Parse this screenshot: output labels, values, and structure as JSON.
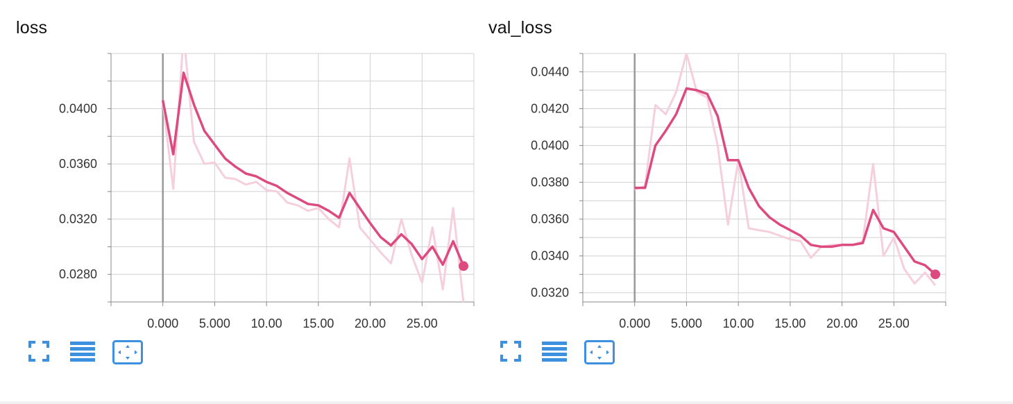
{
  "colors": {
    "line": "#dc4a7f",
    "raw_line": "#f6cfdc",
    "grid": "#d0d0d0",
    "zero_axis": "#999999",
    "icon": "#3d8fe0"
  },
  "toolbar": {
    "icons": [
      "fullscreen-icon",
      "data-table-icon",
      "fit-domain-icon"
    ]
  },
  "chart_data": [
    {
      "type": "line",
      "title": "loss",
      "xlim": [
        -5,
        30
      ],
      "ylim": [
        0.026,
        0.044
      ],
      "x_ticks": [
        0,
        5,
        10,
        15,
        20,
        25
      ],
      "x_tick_labels": [
        "0.000",
        "5.000",
        "10.00",
        "15.00",
        "20.00",
        "25.00"
      ],
      "y_ticks": [
        0.028,
        0.032,
        0.036,
        0.04
      ],
      "y_tick_labels": [
        "0.0280",
        "0.0320",
        "0.0360",
        "0.0400"
      ],
      "grid": true,
      "series": [
        {
          "role": "raw",
          "x": [
            0,
            1,
            2,
            3,
            4,
            5,
            6,
            7,
            8,
            9,
            10,
            11,
            12,
            13,
            14,
            15,
            16,
            17,
            18,
            19,
            20,
            21,
            22,
            23,
            24,
            25,
            26,
            27,
            28,
            29
          ],
          "y": [
            0.0405,
            0.0342,
            0.0454,
            0.0376,
            0.036,
            0.0361,
            0.035,
            0.0349,
            0.0345,
            0.0347,
            0.0341,
            0.034,
            0.0332,
            0.033,
            0.0326,
            0.0328,
            0.032,
            0.0314,
            0.0364,
            0.0314,
            0.0305,
            0.0296,
            0.0288,
            0.032,
            0.0294,
            0.0274,
            0.0314,
            0.0269,
            0.0328,
            0.0259
          ]
        },
        {
          "role": "smoothed",
          "x": [
            0,
            1,
            2,
            3,
            4,
            5,
            6,
            7,
            8,
            9,
            10,
            11,
            12,
            13,
            14,
            15,
            16,
            17,
            18,
            19,
            20,
            21,
            22,
            23,
            24,
            25,
            26,
            27,
            28,
            29
          ],
          "y": [
            0.0406,
            0.0367,
            0.0426,
            0.0403,
            0.0384,
            0.0374,
            0.0364,
            0.0358,
            0.0353,
            0.0351,
            0.0347,
            0.0344,
            0.0339,
            0.0335,
            0.0331,
            0.033,
            0.0326,
            0.0321,
            0.0339,
            0.0328,
            0.0317,
            0.0307,
            0.0301,
            0.0309,
            0.0302,
            0.0291,
            0.03,
            0.0287,
            0.0304,
            0.0286
          ]
        }
      ]
    },
    {
      "type": "line",
      "title": "val_loss",
      "xlim": [
        -5,
        30
      ],
      "ylim": [
        0.0315,
        0.045
      ],
      "x_ticks": [
        0,
        5,
        10,
        15,
        20,
        25
      ],
      "x_tick_labels": [
        "0.000",
        "5.000",
        "10.00",
        "15.00",
        "20.00",
        "25.00"
      ],
      "y_ticks": [
        0.032,
        0.034,
        0.036,
        0.038,
        0.04,
        0.042,
        0.044
      ],
      "y_tick_labels": [
        "0.0320",
        "0.0340",
        "0.0360",
        "0.0380",
        "0.0400",
        "0.0420",
        "0.0440"
      ],
      "grid": true,
      "series": [
        {
          "role": "raw",
          "x": [
            0,
            1,
            2,
            3,
            4,
            5,
            6,
            7,
            8,
            9,
            10,
            11,
            12,
            13,
            14,
            15,
            16,
            17,
            18,
            19,
            20,
            21,
            22,
            23,
            24,
            25,
            26,
            27,
            28,
            29
          ],
          "y": [
            0.0376,
            0.0378,
            0.0422,
            0.0417,
            0.0429,
            0.045,
            0.0429,
            0.0426,
            0.04,
            0.0357,
            0.0392,
            0.0355,
            0.0354,
            0.0353,
            0.0351,
            0.0349,
            0.0348,
            0.0339,
            0.0345,
            0.0346,
            0.0346,
            0.0346,
            0.0348,
            0.039,
            0.034,
            0.035,
            0.0333,
            0.0325,
            0.0331,
            0.0324
          ]
        },
        {
          "role": "smoothed",
          "x": [
            0,
            1,
            2,
            3,
            4,
            5,
            6,
            7,
            8,
            9,
            10,
            11,
            12,
            13,
            14,
            15,
            16,
            17,
            18,
            19,
            20,
            21,
            22,
            23,
            24,
            25,
            26,
            27,
            28,
            29
          ],
          "y": [
            0.0377,
            0.0377,
            0.04,
            0.0408,
            0.0417,
            0.0431,
            0.043,
            0.0428,
            0.0416,
            0.0392,
            0.0392,
            0.0377,
            0.0367,
            0.0361,
            0.0357,
            0.0354,
            0.0351,
            0.0346,
            0.0345,
            0.0345,
            0.0346,
            0.0346,
            0.0347,
            0.0365,
            0.0355,
            0.0353,
            0.0345,
            0.0337,
            0.0335,
            0.033
          ]
        }
      ]
    }
  ]
}
